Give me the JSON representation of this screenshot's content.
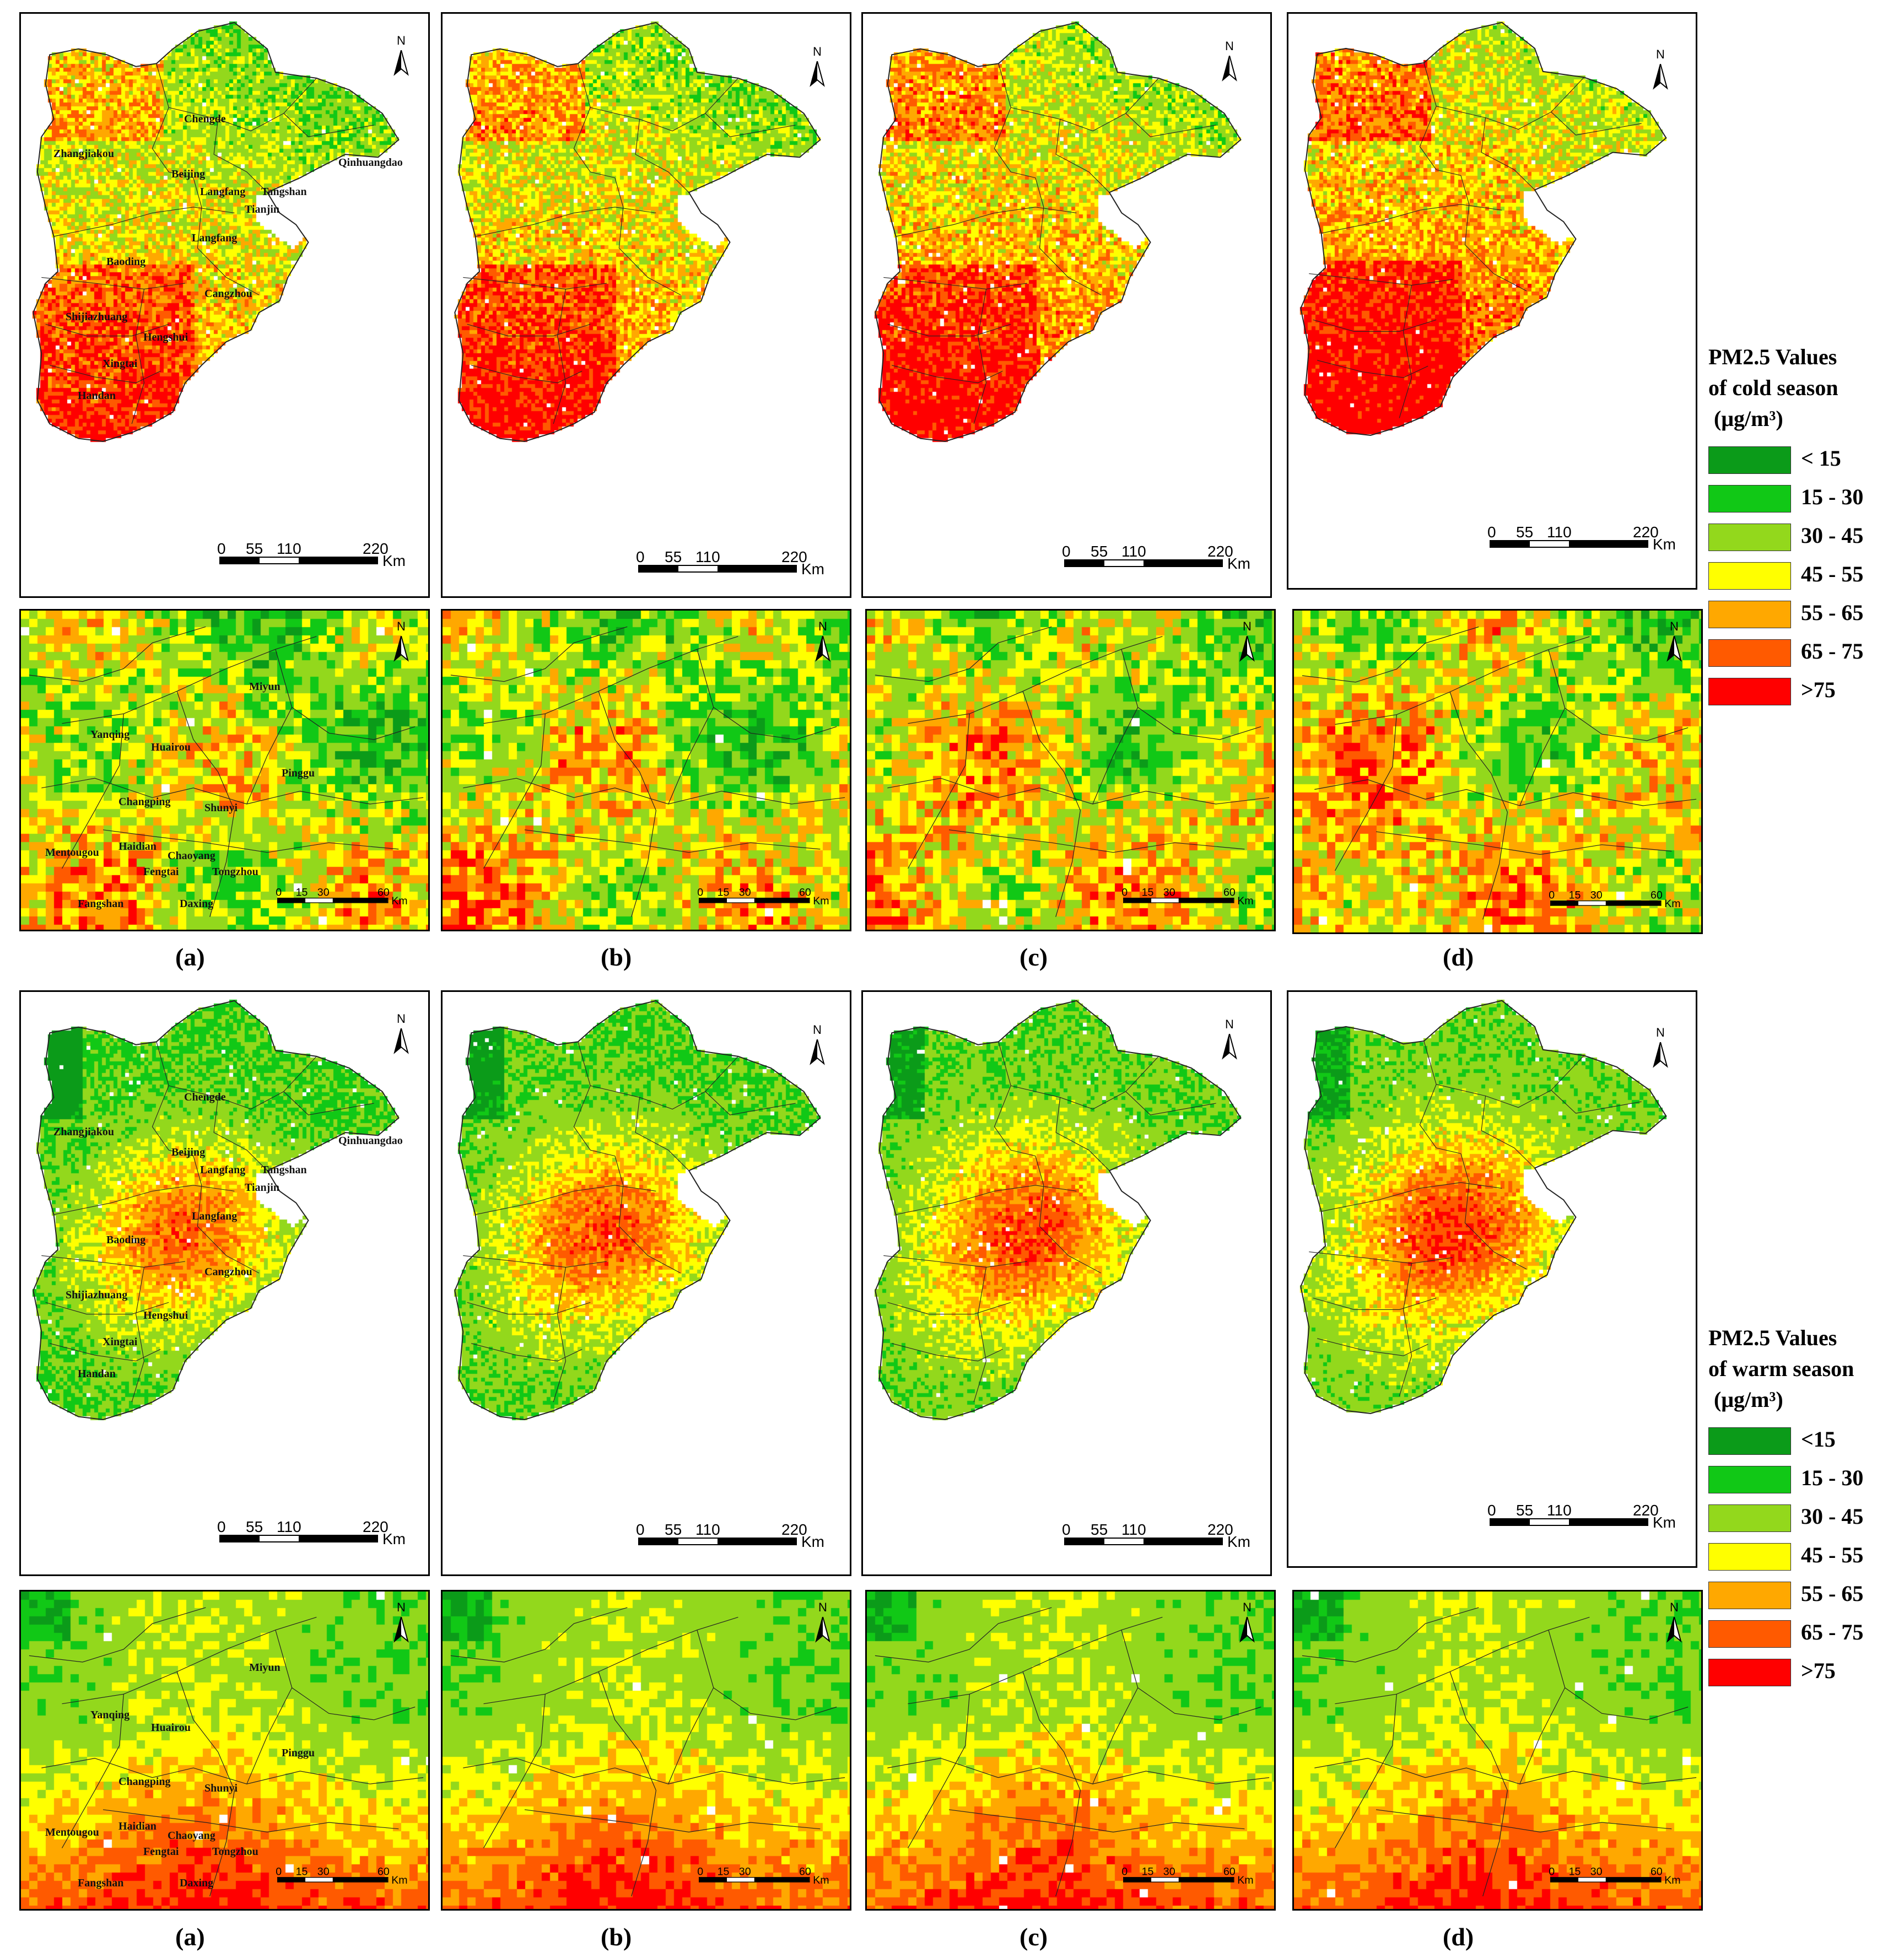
{
  "figure": {
    "captions": [
      "(a)",
      "(b)",
      "(c)",
      "(d)"
    ],
    "north_label": "N",
    "region_scale": {
      "ticks": [
        "0",
        "55",
        "110",
        "220"
      ],
      "unit": "Km"
    },
    "beijing_scale": {
      "ticks": [
        "0",
        "15",
        "30",
        "60"
      ],
      "unit": "Km"
    }
  },
  "region_labels": [
    "Chengde",
    "Zhangjiakou",
    "Qinhuangdao",
    "Beijing",
    "Langfang",
    "Tangshan",
    "Tianjin",
    "Langfang",
    "Baoding",
    "Cangzhou",
    "Shijiazhuang",
    "Hengshui",
    "Xingtai",
    "Handan"
  ],
  "beijing_labels": [
    "Miyun",
    "Yanqing",
    "Huairou",
    "Pinggu",
    "Changping",
    "Shunyi",
    "Haidian",
    "Mentougou",
    "Chaoyang",
    "Fengtai",
    "Tongzhou",
    "Fangshan",
    "Daxing"
  ],
  "legends": {
    "cold": {
      "title_line1": "PM2.5 Values",
      "title_line2": "of cold season",
      "unit": "(μg/m³)",
      "classes": [
        "< 15",
        "15 - 30",
        "30 - 45",
        "45 - 55",
        "55 - 65",
        "65 - 75",
        ">75"
      ]
    },
    "warm": {
      "title_line1": "PM2.5 Values",
      "title_line2": "of warm season",
      "unit": "(μg/m³)",
      "classes": [
        "<15",
        "15 - 30",
        "30 - 45",
        "45 - 55",
        "55 - 65",
        "65 - 75",
        ">75"
      ]
    }
  },
  "colors": {
    "lt15": "#0b9b19",
    "c15_30": "#11c816",
    "c30_45": "#93d81c",
    "c45_55": "#ffff00",
    "c55_65": "#ffa800",
    "c65_75": "#ff5a00",
    "gt75": "#ff0000"
  }
}
